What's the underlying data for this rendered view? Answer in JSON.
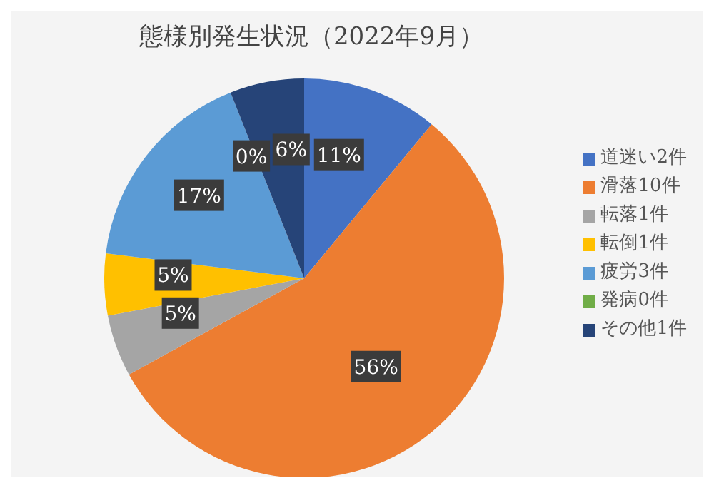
{
  "chart_data": {
    "type": "pie",
    "title": "態様別発生状況（2022年9月）",
    "categories": [
      "道迷い2件",
      "滑落10件",
      "転落1件",
      "転倒1件",
      "疲労3件",
      "発病0件",
      "その他1件"
    ],
    "values": [
      11,
      56,
      5,
      5,
      17,
      0,
      6
    ],
    "colors": [
      "#4472c4",
      "#ed7d31",
      "#a5a5a5",
      "#ffc000",
      "#5b9bd5",
      "#70ad47",
      "#264478"
    ],
    "value_labels": [
      "11%",
      "56%",
      "5%",
      "5%",
      "17%",
      "0%",
      "6%"
    ],
    "legend": "right"
  }
}
